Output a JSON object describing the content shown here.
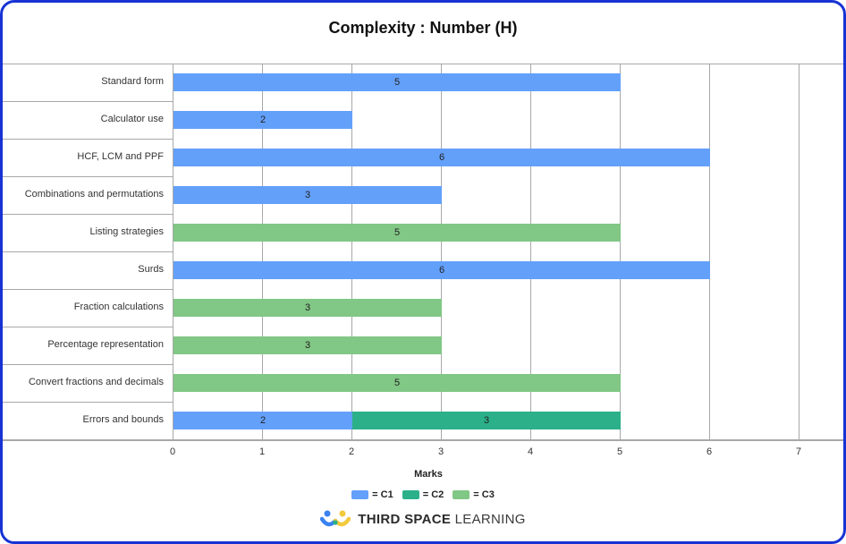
{
  "title": "Complexity : Number (H)",
  "colors": {
    "C1": "#63a0fa",
    "C2": "#2bb089",
    "C3": "#81c785",
    "frame": "#1733d4",
    "grid": "#a8a8a8"
  },
  "chart_data": {
    "type": "bar",
    "orientation": "horizontal",
    "stacked": true,
    "title": "Complexity : Number (H)",
    "xlabel": "Marks",
    "ylabel": "",
    "xlim": [
      0,
      7.4
    ],
    "x_ticks": [
      "0",
      "1",
      "2",
      "3",
      "4",
      "5",
      "6",
      "7"
    ],
    "grid": true,
    "legend_position": "bottom",
    "categories": [
      "Standard form",
      "Calculator use",
      "HCF, LCM and PPF",
      "Combinations and permutations",
      "Listing strategies",
      "Surds",
      "Fraction calculations",
      "Percentage representation",
      "Convert fractions and decimals",
      "Errors and bounds"
    ],
    "series": [
      {
        "name": "C1",
        "values": [
          5,
          2,
          6,
          3,
          0,
          6,
          0,
          0,
          0,
          2
        ]
      },
      {
        "name": "C2",
        "values": [
          0,
          0,
          0,
          0,
          0,
          0,
          0,
          0,
          0,
          3
        ]
      },
      {
        "name": "C3",
        "values": [
          0,
          0,
          0,
          0,
          5,
          0,
          3,
          3,
          5,
          0
        ]
      }
    ]
  },
  "rows": [
    {
      "label": "Standard form",
      "segments": [
        {
          "series": "C1",
          "start": 0,
          "value": 5,
          "text": "5"
        }
      ]
    },
    {
      "label": "Calculator use",
      "segments": [
        {
          "series": "C1",
          "start": 0,
          "value": 2,
          "text": "2"
        }
      ]
    },
    {
      "label": "HCF, LCM and PPF",
      "segments": [
        {
          "series": "C1",
          "start": 0,
          "value": 6,
          "text": "6"
        }
      ]
    },
    {
      "label": "Combinations and permutations",
      "segments": [
        {
          "series": "C1",
          "start": 0,
          "value": 3,
          "text": "3"
        }
      ]
    },
    {
      "label": "Listing strategies",
      "segments": [
        {
          "series": "C3",
          "start": 0,
          "value": 5,
          "text": "5"
        }
      ]
    },
    {
      "label": "Surds",
      "segments": [
        {
          "series": "C1",
          "start": 0,
          "value": 6,
          "text": "6"
        }
      ]
    },
    {
      "label": "Fraction calculations",
      "segments": [
        {
          "series": "C3",
          "start": 0,
          "value": 3,
          "text": "3"
        }
      ]
    },
    {
      "label": "Percentage representation",
      "segments": [
        {
          "series": "C3",
          "start": 0,
          "value": 3,
          "text": "3"
        }
      ]
    },
    {
      "label": "Convert fractions and decimals",
      "segments": [
        {
          "series": "C3",
          "start": 0,
          "value": 5,
          "text": "5"
        }
      ]
    },
    {
      "label": "Errors and bounds",
      "segments": [
        {
          "series": "C1",
          "start": 0,
          "value": 2,
          "text": "2"
        },
        {
          "series": "C2",
          "start": 2,
          "value": 3,
          "text": "3"
        }
      ]
    }
  ],
  "legend": [
    {
      "series": "C1",
      "label": "= C1"
    },
    {
      "series": "C2",
      "label": "= C2"
    },
    {
      "series": "C3",
      "label": "= C3"
    }
  ],
  "logo": {
    "bold": "THIRD SPACE",
    "light": "LEARNING",
    "icon": "tsl-people-icon"
  }
}
